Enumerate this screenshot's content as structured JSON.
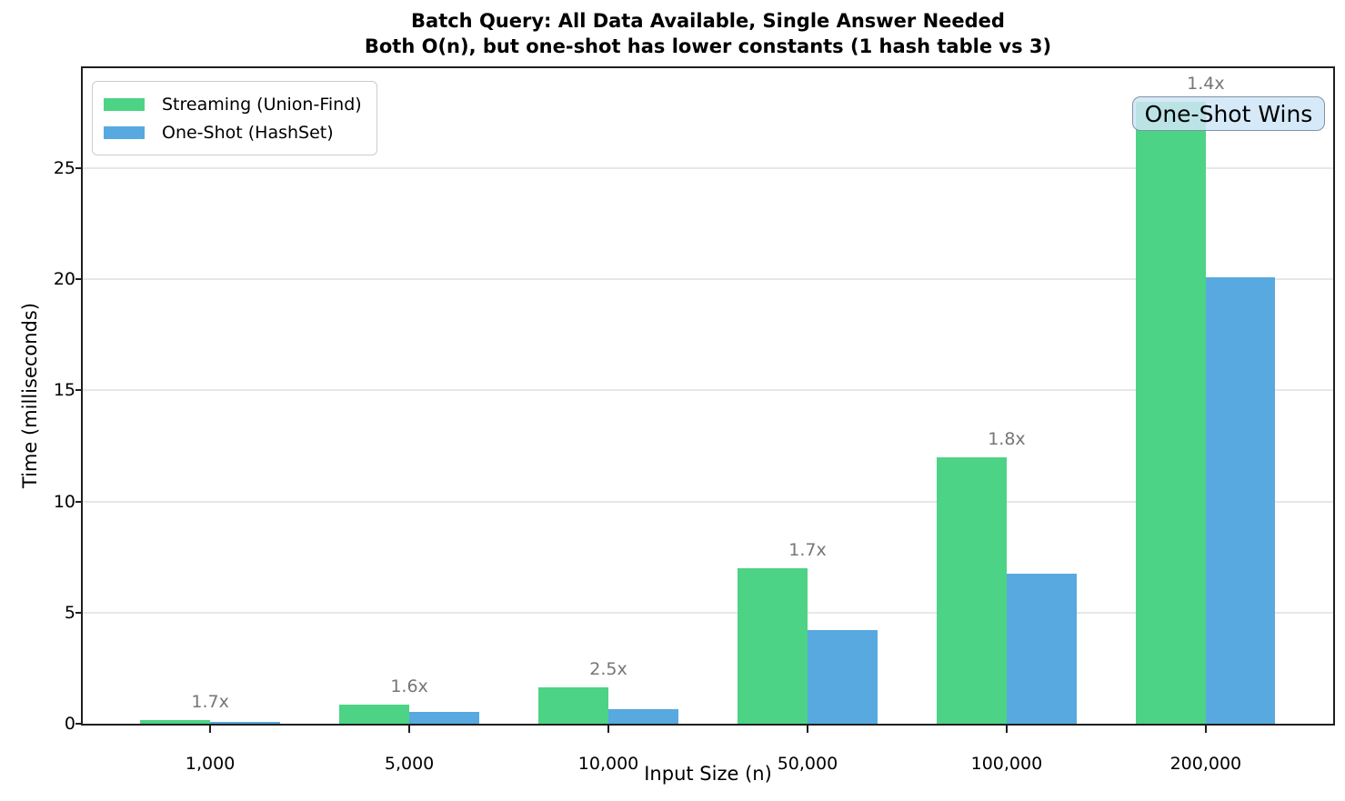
{
  "chart_data": {
    "type": "bar",
    "title": "Batch Query: All Data Available, Single Answer Needed",
    "subtitle": "Both O(n), but one-shot has lower constants (1 hash table vs 3)",
    "xlabel": "Input Size (n)",
    "ylabel": "Time (milliseconds)",
    "categories": [
      "1,000",
      "5,000",
      "10,000",
      "50,000",
      "100,000",
      "200,000"
    ],
    "series": [
      {
        "name": "Streaming (Union-Find)",
        "color": "#4dd385",
        "values": [
          0.17,
          0.85,
          1.65,
          7.0,
          12.0,
          28.0
        ]
      },
      {
        "name": "One-Shot (HashSet)",
        "color": "#57a9e0",
        "values": [
          0.1,
          0.53,
          0.65,
          4.2,
          6.75,
          20.1
        ]
      }
    ],
    "bar_labels": [
      "1.7x",
      "1.6x",
      "2.5x",
      "1.7x",
      "1.8x",
      "1.4x"
    ],
    "bar_label_color": "#767676",
    "ylim": [
      0,
      29.5
    ],
    "yticks": [
      0,
      5,
      10,
      15,
      20,
      25
    ],
    "grid": "horizontal",
    "legend_position": "upper-left",
    "annotation": {
      "text": "One-Shot Wins",
      "fill_color": "#cfe5f7",
      "border_color": "#7f93a2"
    }
  }
}
